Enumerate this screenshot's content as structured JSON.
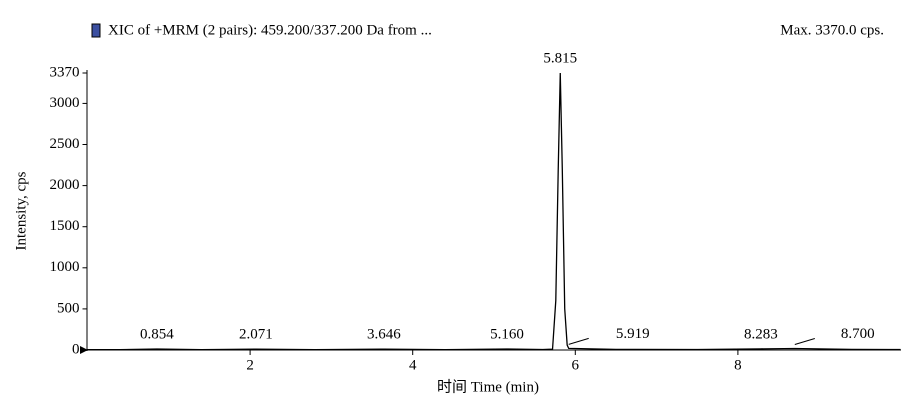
{
  "chart_data": {
    "type": "line",
    "title": "XIC of +MRM (2 pairs): 459.200/337.200 Da  from ...",
    "subtitle": "Max. 3370.0 cps.",
    "x_label": "时间 Time (min)",
    "y_label": "Intensity, cps",
    "color": "#000000",
    "x": [
      0.0,
      0.4,
      0.854,
      1.4,
      2.071,
      2.8,
      3.646,
      4.4,
      5.16,
      5.6,
      5.72,
      5.76,
      5.79,
      5.815,
      5.84,
      5.87,
      5.9,
      5.919,
      6.5,
      7.5,
      8.283,
      8.7,
      9.4,
      10.0
    ],
    "values": [
      5,
      4,
      12,
      4,
      10,
      4,
      10,
      5,
      12,
      6,
      10,
      600,
      2200,
      3370,
      2200,
      500,
      60,
      20,
      8,
      6,
      14,
      18,
      8,
      6
    ],
    "xlim": [
      0,
      10
    ],
    "xticks": [
      2,
      4,
      6,
      8
    ],
    "ylim": [
      0,
      3370
    ],
    "yticks": [
      0,
      500,
      1000,
      1500,
      2000,
      2500,
      3000,
      3370
    ],
    "grid": false,
    "annotations": [
      {
        "x": 0.854,
        "y": 12,
        "text": "0.854"
      },
      {
        "x": 2.071,
        "y": 10,
        "text": "2.071"
      },
      {
        "x": 3.646,
        "y": 10,
        "text": "3.646"
      },
      {
        "x": 5.16,
        "y": 12,
        "text": "5.160"
      },
      {
        "x": 5.815,
        "y": 3370,
        "text": "5.815"
      },
      {
        "x": 5.919,
        "y": 20,
        "text": "5.919"
      },
      {
        "x": 8.283,
        "y": 14,
        "text": "8.283"
      },
      {
        "x": 8.7,
        "y": 18,
        "text": "8.700"
      }
    ]
  }
}
